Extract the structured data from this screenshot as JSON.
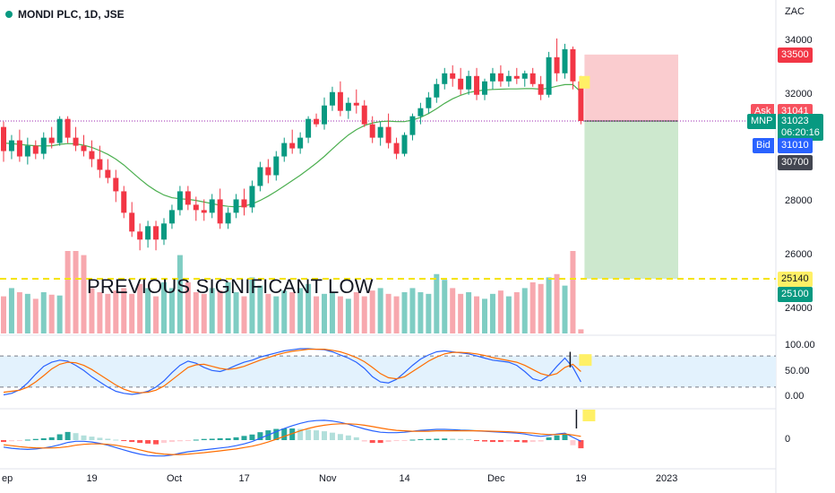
{
  "header": {
    "symbol_title": "MONDI PLC, 1D, JSE",
    "currency": "ZAC"
  },
  "annotation": "PREVIOUS SIGNIFICANT LOW",
  "price_axis": {
    "ticks": [
      "34000",
      "32000",
      "28000",
      "26000",
      "24000"
    ],
    "tick_values": [
      34000,
      32000,
      28000,
      26000,
      24000
    ],
    "ylim": [
      23100,
      35200
    ]
  },
  "x_axis": {
    "labels": [
      "ep",
      "19",
      "Oct",
      "17",
      "Nov",
      "14",
      "Dec",
      "19",
      "2023"
    ],
    "bar_index": [
      0,
      11,
      21,
      30,
      40,
      50,
      61,
      72,
      82
    ]
  },
  "price_badges": {
    "tp_top": {
      "value": "33500",
      "price": 33500,
      "color": "#f23645"
    },
    "ask": {
      "label": "Ask",
      "value": "31041",
      "price": 31041,
      "color": "#f7525f"
    },
    "last": {
      "label": "MNP",
      "value": "31023",
      "countdown": "06:20:16",
      "price": 31023,
      "color": "#089981"
    },
    "bid": {
      "label": "Bid",
      "value": "31010",
      "price": 31010,
      "color": "#2962ff"
    },
    "level": {
      "value": "30700",
      "price": 30700,
      "color": "#434651"
    },
    "support": {
      "value": "25140",
      "price": 25140,
      "color": "#fff066"
    },
    "target": {
      "value": "25100",
      "price": 25100,
      "color": "#089981"
    }
  },
  "stoch_axis": {
    "ticks": [
      "100.00",
      "50.00",
      "0.00"
    ],
    "values": [
      100,
      50,
      0
    ],
    "upper_band": 80,
    "lower_band": 20
  },
  "macd_axis": {
    "ticks": [
      "0"
    ],
    "values": [
      0
    ]
  },
  "colors": {
    "up": "#089981",
    "down": "#f23645",
    "up_vol": "#7fcdc3",
    "down_vol": "#f7a8ae",
    "ma": "#4caf50",
    "stoch_k": "#2962ff",
    "stoch_d": "#ff6d00",
    "stoch_bg": "#e3f2fd",
    "support_line": "#f5e400",
    "risk_zone": "#f9c6ca",
    "reward_zone": "#c8e6c9",
    "last_dotted": "#9c27b0"
  },
  "chart_data": [
    {
      "type": "candlestick",
      "title": "MONDI PLC, 1D, JSE",
      "ylabel": "ZAC",
      "ylim": [
        23100,
        35200
      ],
      "ohlc": [
        [
          30800,
          31000,
          29500,
          29900
        ],
        [
          29900,
          30500,
          29600,
          30300
        ],
        [
          30300,
          30700,
          29500,
          29700
        ],
        [
          29700,
          30400,
          29400,
          30100
        ],
        [
          30100,
          30300,
          29600,
          29800
        ],
        [
          29800,
          30600,
          29600,
          30400
        ],
        [
          30400,
          30800,
          30000,
          30200
        ],
        [
          30200,
          31200,
          30100,
          31100
        ],
        [
          31100,
          31200,
          30200,
          30400
        ],
        [
          30400,
          30800,
          29900,
          30100
        ],
        [
          30100,
          30500,
          29700,
          29900
        ],
        [
          29900,
          30300,
          29300,
          29600
        ],
        [
          29600,
          30100,
          28900,
          29200
        ],
        [
          29200,
          29600,
          28700,
          28900
        ],
        [
          28900,
          29200,
          28000,
          28400
        ],
        [
          28400,
          28600,
          27400,
          27600
        ],
        [
          27600,
          28000,
          26700,
          26900
        ],
        [
          26900,
          27200,
          26200,
          26600
        ],
        [
          26600,
          27300,
          26300,
          27100
        ],
        [
          27100,
          27300,
          26200,
          26600
        ],
        [
          26600,
          27400,
          26400,
          27200
        ],
        [
          27200,
          27900,
          27000,
          27700
        ],
        [
          27700,
          28600,
          27500,
          28400
        ],
        [
          28400,
          28600,
          27700,
          27900
        ],
        [
          27900,
          28200,
          27300,
          27700
        ],
        [
          27700,
          28100,
          27300,
          27600
        ],
        [
          27600,
          28300,
          27400,
          28100
        ],
        [
          28100,
          28500,
          27000,
          27200
        ],
        [
          27200,
          27800,
          27000,
          27600
        ],
        [
          27600,
          28300,
          27400,
          28100
        ],
        [
          28100,
          28500,
          27500,
          27800
        ],
        [
          27800,
          28800,
          27600,
          28600
        ],
        [
          28600,
          29500,
          28400,
          29300
        ],
        [
          29300,
          29600,
          28700,
          29000
        ],
        [
          29000,
          29900,
          28800,
          29700
        ],
        [
          29700,
          30400,
          29500,
          30200
        ],
        [
          30200,
          30700,
          29800,
          30000
        ],
        [
          30000,
          30600,
          29800,
          30400
        ],
        [
          30400,
          31200,
          30200,
          31100
        ],
        [
          31100,
          31300,
          30800,
          30900
        ],
        [
          30900,
          31900,
          30700,
          31600
        ],
        [
          31600,
          32300,
          31400,
          32100
        ],
        [
          32100,
          32500,
          31200,
          31400
        ],
        [
          31400,
          31900,
          31100,
          31700
        ],
        [
          31700,
          32200,
          31300,
          31600
        ],
        [
          31600,
          31800,
          30800,
          30900
        ],
        [
          30900,
          31200,
          30200,
          30400
        ],
        [
          30400,
          31000,
          30100,
          30800
        ],
        [
          30800,
          31300,
          30000,
          30200
        ],
        [
          30200,
          30400,
          29600,
          29800
        ],
        [
          29800,
          30600,
          29700,
          30500
        ],
        [
          30500,
          31300,
          30300,
          31200
        ],
        [
          31200,
          31700,
          30900,
          31500
        ],
        [
          31500,
          32100,
          31300,
          31900
        ],
        [
          31900,
          32600,
          31700,
          32400
        ],
        [
          32400,
          33000,
          32200,
          32800
        ],
        [
          32800,
          33100,
          32300,
          32600
        ],
        [
          32600,
          33000,
          32000,
          32200
        ],
        [
          32200,
          32900,
          32000,
          32700
        ],
        [
          32700,
          33000,
          31800,
          32000
        ],
        [
          32000,
          32600,
          31800,
          32500
        ],
        [
          32500,
          33000,
          32200,
          32800
        ],
        [
          32800,
          33100,
          32300,
          32500
        ],
        [
          32500,
          32900,
          32300,
          32700
        ],
        [
          32700,
          33000,
          32400,
          32600
        ],
        [
          32600,
          32900,
          32300,
          32800
        ],
        [
          32800,
          33000,
          32300,
          32400
        ],
        [
          32400,
          32700,
          31800,
          32000
        ],
        [
          32000,
          33600,
          31900,
          33400
        ],
        [
          33400,
          34100,
          32500,
          32800
        ],
        [
          32800,
          33900,
          32600,
          33700
        ],
        [
          33700,
          33800,
          32200,
          32500
        ],
        [
          32500,
          32700,
          30900,
          31023
        ]
      ],
      "moving_average": [
        30200,
        30180,
        30150,
        30120,
        30100,
        30090,
        30100,
        30150,
        30180,
        30170,
        30120,
        30040,
        29920,
        29780,
        29600,
        29380,
        29120,
        28860,
        28620,
        28420,
        28260,
        28160,
        28120,
        28100,
        28060,
        28000,
        27940,
        27880,
        27840,
        27820,
        27850,
        27930,
        28060,
        28220,
        28400,
        28600,
        28800,
        29000,
        29220,
        29450,
        29700,
        29980,
        30250,
        30500,
        30700,
        30850,
        30950,
        31000,
        31020,
        31000,
        31000,
        31060,
        31160,
        31300,
        31480,
        31680,
        31850,
        31980,
        32080,
        32140,
        32180,
        32200,
        32210,
        32220,
        32220,
        32230,
        32230,
        32210,
        32250,
        32320,
        32380,
        32380,
        32100
      ],
      "volume_relative": [
        0.45,
        0.55,
        0.5,
        0.48,
        0.42,
        0.5,
        0.47,
        0.46,
        1.0,
        1.0,
        0.95,
        0.55,
        0.5,
        0.48,
        0.52,
        0.55,
        0.48,
        0.6,
        0.55,
        0.45,
        0.62,
        0.55,
        0.95,
        0.62,
        0.5,
        0.48,
        0.55,
        0.52,
        0.62,
        0.5,
        0.45,
        0.68,
        0.58,
        0.48,
        0.45,
        0.52,
        0.5,
        0.55,
        0.6,
        0.45,
        0.48,
        0.5,
        0.45,
        0.42,
        0.5,
        0.45,
        0.52,
        0.55,
        0.48,
        0.45,
        0.5,
        0.55,
        0.5,
        0.48,
        0.72,
        0.65,
        0.55,
        0.48,
        0.5,
        0.45,
        0.42,
        0.48,
        0.52,
        0.45,
        0.5,
        0.55,
        0.62,
        0.6,
        0.68,
        0.72,
        0.58,
        1.0,
        0.05
      ]
    },
    {
      "type": "line",
      "title": "Stochastic",
      "ylim": [
        -20,
        120
      ],
      "series": [
        {
          "values": [
            5,
            8,
            15,
            28,
            45,
            60,
            68,
            72,
            70,
            62,
            52,
            40,
            30,
            20,
            12,
            8,
            6,
            8,
            12,
            20,
            32,
            48,
            62,
            70,
            66,
            58,
            52,
            50,
            55,
            62,
            68,
            72,
            78,
            82,
            86,
            90,
            92,
            94,
            94,
            93,
            92,
            88,
            82,
            76,
            68,
            56,
            40,
            30,
            28,
            35,
            48,
            62,
            74,
            82,
            88,
            90,
            88,
            86,
            84,
            80,
            76,
            72,
            70,
            68,
            62,
            50,
            36,
            32,
            42,
            60,
            76,
            58,
            30
          ]
        },
        {
          "values": [
            10,
            12,
            14,
            20,
            30,
            42,
            55,
            64,
            68,
            67,
            62,
            54,
            44,
            34,
            24,
            16,
            11,
            9,
            10,
            14,
            22,
            34,
            46,
            58,
            63,
            64,
            60,
            56,
            54,
            56,
            60,
            66,
            72,
            77,
            82,
            86,
            89,
            91,
            93,
            93,
            93,
            91,
            88,
            83,
            77,
            69,
            58,
            46,
            38,
            36,
            40,
            50,
            60,
            70,
            78,
            84,
            87,
            87,
            86,
            84,
            81,
            77,
            74,
            71,
            68,
            62,
            54,
            46,
            42,
            46,
            58,
            64,
            50
          ]
        }
      ]
    },
    {
      "type": "bar",
      "title": "MACD",
      "histogram": [
        -0.08,
        -0.05,
        -0.02,
        0.02,
        0.05,
        0.08,
        0.12,
        0.25,
        0.35,
        0.3,
        0.2,
        0.15,
        0.1,
        0.06,
        0.02,
        -0.04,
        -0.08,
        -0.12,
        -0.15,
        -0.18,
        -0.12,
        -0.08,
        -0.05,
        -0.02,
        0.02,
        0.05,
        0.06,
        0.08,
        0.08,
        0.12,
        0.18,
        0.24,
        0.34,
        0.42,
        0.48,
        0.5,
        0.5,
        0.48,
        0.45,
        0.42,
        0.38,
        0.32,
        0.26,
        0.2,
        0.12,
        -0.06,
        -0.12,
        -0.12,
        -0.08,
        -0.04,
        -0.02,
        0.02,
        0.04,
        0.05,
        0.06,
        0.07,
        0.06,
        0.05,
        0.04,
        -0.04,
        -0.06,
        -0.08,
        -0.08,
        -0.06,
        -0.08,
        -0.1,
        -0.08,
        -0.06,
        0.12,
        0.2,
        0.25,
        -0.22,
        -0.35
      ],
      "macd_line": [
        -0.3,
        -0.35,
        -0.38,
        -0.4,
        -0.38,
        -0.34,
        -0.28,
        -0.2,
        -0.1,
        -0.05,
        -0.05,
        -0.08,
        -0.14,
        -0.22,
        -0.32,
        -0.42,
        -0.52,
        -0.6,
        -0.66,
        -0.68,
        -0.68,
        -0.64,
        -0.56,
        -0.5,
        -0.46,
        -0.42,
        -0.38,
        -0.34,
        -0.3,
        -0.24,
        -0.16,
        -0.06,
        0.08,
        0.22,
        0.36,
        0.5,
        0.62,
        0.72,
        0.8,
        0.84,
        0.85,
        0.82,
        0.76,
        0.68,
        0.58,
        0.48,
        0.4,
        0.34,
        0.32,
        0.32,
        0.34,
        0.38,
        0.42,
        0.44,
        0.46,
        0.46,
        0.45,
        0.43,
        0.42,
        0.4,
        0.38,
        0.36,
        0.34,
        0.32,
        0.3,
        0.26,
        0.2,
        0.16,
        0.2,
        0.26,
        0.3,
        0.12,
        -0.05
      ],
      "signal_line": [
        -0.2,
        -0.24,
        -0.28,
        -0.31,
        -0.33,
        -0.34,
        -0.34,
        -0.32,
        -0.28,
        -0.22,
        -0.18,
        -0.16,
        -0.16,
        -0.18,
        -0.22,
        -0.28,
        -0.34,
        -0.42,
        -0.5,
        -0.56,
        -0.6,
        -0.62,
        -0.62,
        -0.6,
        -0.57,
        -0.54,
        -0.5,
        -0.46,
        -0.42,
        -0.38,
        -0.32,
        -0.26,
        -0.18,
        -0.08,
        0.04,
        0.16,
        0.28,
        0.4,
        0.5,
        0.58,
        0.64,
        0.68,
        0.7,
        0.7,
        0.68,
        0.64,
        0.58,
        0.52,
        0.46,
        0.42,
        0.4,
        0.38,
        0.38,
        0.38,
        0.4,
        0.4,
        0.4,
        0.4,
        0.4,
        0.4,
        0.39,
        0.38,
        0.37,
        0.36,
        0.34,
        0.32,
        0.3,
        0.26,
        0.24,
        0.24,
        0.26,
        0.22,
        0.16
      ]
    }
  ]
}
